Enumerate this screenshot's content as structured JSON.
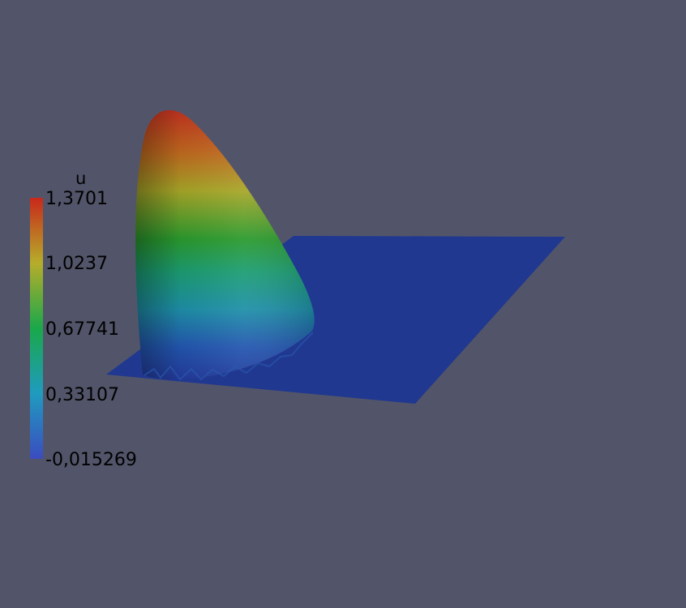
{
  "scalar_bar": {
    "title": "u",
    "ticks": [
      "1,3701",
      "1,0237",
      "0,67741",
      "0,33107",
      "-0,015269"
    ],
    "range": [
      -0.015269,
      1.3701
    ],
    "colormap": [
      "#3b4cc0",
      "#1f9bbf",
      "#1aa84a",
      "#b6ad2a",
      "#c8281a"
    ]
  },
  "scene": {
    "background": "#525569",
    "plane_color": "#203890"
  }
}
